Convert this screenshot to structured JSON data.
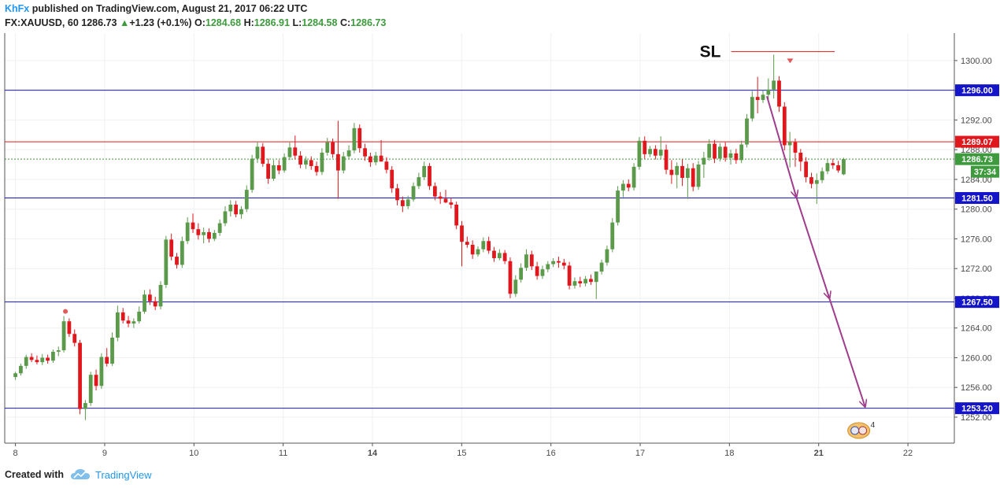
{
  "header": {
    "author": "KhFx",
    "published": "published on TradingView.com, August 21, 2017 06:22 UTC",
    "symbol": "FX:XAUUSD, 60",
    "last": "1286.73",
    "arrow": "▲",
    "change": "+1.23 (+0.1%)",
    "o_label": "O:",
    "o_value": "1284.68",
    "h_label": "H:",
    "h_value": "1286.91",
    "l_label": "L:",
    "l_value": "1284.58",
    "c_label": "C:",
    "c_value": "1286.73"
  },
  "footer": {
    "created_with": "Created with",
    "brand": "TradingView",
    "logo_icon": "tradingview-cloud-icon"
  },
  "colors": {
    "up": "#5b9a4a",
    "down": "#e0181d",
    "support": "#1414c8",
    "resistance": "#e0181d",
    "arrow": "#a03c8c",
    "current": "#3d9a3d",
    "axis": "#555555"
  },
  "chart_data": {
    "type": "candlestick",
    "title": "",
    "xlabel": "",
    "ylabel": "",
    "ylim": [
      1248.5,
      1303.7
    ],
    "y_ticks": [
      1252,
      1256,
      1260,
      1264,
      1268,
      1272,
      1276,
      1280,
      1284,
      1288,
      1292,
      1296,
      1300
    ],
    "x_ticks": [
      {
        "label": "8",
        "day": 0
      },
      {
        "label": "9",
        "day": 1
      },
      {
        "label": "10",
        "day": 2
      },
      {
        "label": "11",
        "day": 3
      },
      {
        "label": "14",
        "day": 4
      },
      {
        "label": "15",
        "day": 5
      },
      {
        "label": "16",
        "day": 6
      },
      {
        "label": "17",
        "day": 7
      },
      {
        "label": "18",
        "day": 8
      },
      {
        "label": "21",
        "day": 9
      },
      {
        "label": "22",
        "day": 10
      }
    ],
    "x_range_days": [
      -0.12,
      10.52
    ],
    "sl_label": "SL",
    "sl_price": 1301.2,
    "sl_day_range": [
      8.02,
      9.18
    ],
    "horizontal_levels": [
      {
        "price": 1296.0,
        "label": "1296.00",
        "kind": "support"
      },
      {
        "price": 1289.07,
        "label": "1289.07",
        "kind": "resistance"
      },
      {
        "price": 1281.5,
        "label": "1281.50",
        "kind": "support"
      },
      {
        "price": 1267.5,
        "label": "1267.50",
        "kind": "support"
      },
      {
        "price": 1253.2,
        "label": "1253.20",
        "kind": "support"
      }
    ],
    "current_price": {
      "price": 1286.73,
      "label": "1286.73",
      "countdown": "37:34"
    },
    "projection_path": [
      {
        "day": 8.42,
        "price": 1295.2
      },
      {
        "day": 8.75,
        "price": 1281.6
      },
      {
        "day": 9.12,
        "price": 1268.0
      },
      {
        "day": 9.52,
        "price": 1253.4
      }
    ],
    "events_badge": "4",
    "candles_ohlc": [
      [
        1257.4,
        1258.1,
        1257.0,
        1257.9
      ],
      [
        1257.9,
        1259.2,
        1257.6,
        1258.9
      ],
      [
        1258.9,
        1260.4,
        1258.5,
        1260.1
      ],
      [
        1260.1,
        1260.6,
        1259.4,
        1259.7
      ],
      [
        1259.7,
        1260.3,
        1259.1,
        1259.4
      ],
      [
        1259.4,
        1260.5,
        1259.0,
        1260.0
      ],
      [
        1260.0,
        1260.4,
        1259.2,
        1259.6
      ],
      [
        1259.6,
        1261.1,
        1259.3,
        1260.8
      ],
      [
        1260.8,
        1261.5,
        1260.2,
        1261.0
      ],
      [
        1261.0,
        1265.6,
        1260.7,
        1264.9
      ],
      [
        1264.9,
        1265.3,
        1262.8,
        1263.2
      ],
      [
        1263.2,
        1263.8,
        1261.5,
        1262.0
      ],
      [
        1262.0,
        1262.4,
        1252.4,
        1253.1
      ],
      [
        1253.1,
        1254.3,
        1251.6,
        1253.9
      ],
      [
        1253.9,
        1258.1,
        1253.5,
        1257.7
      ],
      [
        1257.7,
        1258.4,
        1255.6,
        1256.2
      ],
      [
        1256.2,
        1260.6,
        1255.8,
        1260.1
      ],
      [
        1260.1,
        1261.3,
        1258.8,
        1259.2
      ],
      [
        1259.2,
        1263.4,
        1258.9,
        1262.7
      ],
      [
        1262.7,
        1267.0,
        1262.2,
        1266.1
      ],
      [
        1266.1,
        1266.7,
        1264.6,
        1265.0
      ],
      [
        1265.0,
        1265.6,
        1264.1,
        1264.6
      ],
      [
        1264.6,
        1265.3,
        1264.0,
        1264.9
      ],
      [
        1264.9,
        1266.9,
        1264.6,
        1266.2
      ],
      [
        1266.2,
        1269.1,
        1265.9,
        1268.5
      ],
      [
        1268.5,
        1269.2,
        1267.1,
        1267.6
      ],
      [
        1267.6,
        1268.2,
        1266.4,
        1266.9
      ],
      [
        1266.9,
        1270.3,
        1266.5,
        1269.8
      ],
      [
        1269.8,
        1276.4,
        1269.4,
        1275.9
      ],
      [
        1275.9,
        1276.7,
        1273.1,
        1273.6
      ],
      [
        1273.6,
        1274.1,
        1272.0,
        1272.5
      ],
      [
        1272.5,
        1276.3,
        1272.1,
        1275.7
      ],
      [
        1275.7,
        1278.9,
        1275.3,
        1278.2
      ],
      [
        1278.2,
        1279.4,
        1276.8,
        1277.3
      ],
      [
        1277.3,
        1278.1,
        1275.9,
        1276.5
      ],
      [
        1276.5,
        1277.5,
        1275.4,
        1276.9
      ],
      [
        1276.9,
        1277.4,
        1275.5,
        1276.0
      ],
      [
        1276.0,
        1277.2,
        1275.7,
        1276.8
      ],
      [
        1276.8,
        1278.6,
        1276.4,
        1278.1
      ],
      [
        1278.1,
        1280.4,
        1277.7,
        1279.7
      ],
      [
        1279.7,
        1281.2,
        1279.0,
        1280.6
      ],
      [
        1280.6,
        1281.1,
        1278.9,
        1279.3
      ],
      [
        1279.3,
        1280.4,
        1278.7,
        1280.0
      ],
      [
        1280.0,
        1283.2,
        1279.6,
        1282.6
      ],
      [
        1282.6,
        1287.3,
        1282.2,
        1286.8
      ],
      [
        1286.8,
        1289.1,
        1286.2,
        1288.4
      ],
      [
        1288.4,
        1288.9,
        1285.7,
        1286.1
      ],
      [
        1286.1,
        1286.8,
        1283.4,
        1284.1
      ],
      [
        1284.1,
        1286.6,
        1283.8,
        1285.9
      ],
      [
        1285.9,
        1286.6,
        1284.7,
        1285.2
      ],
      [
        1285.2,
        1287.5,
        1284.9,
        1287.0
      ],
      [
        1287.0,
        1289.0,
        1286.6,
        1288.3
      ],
      [
        1288.3,
        1289.9,
        1286.7,
        1287.2
      ],
      [
        1287.2,
        1287.8,
        1285.5,
        1286.0
      ],
      [
        1286.0,
        1287.1,
        1285.4,
        1286.6
      ],
      [
        1286.6,
        1287.1,
        1285.3,
        1285.8
      ],
      [
        1285.8,
        1286.4,
        1284.5,
        1285.0
      ],
      [
        1285.0,
        1288.2,
        1284.6,
        1287.6
      ],
      [
        1287.6,
        1289.6,
        1287.2,
        1289.0
      ],
      [
        1289.0,
        1289.5,
        1286.9,
        1287.4
      ],
      [
        1287.4,
        1291.9,
        1281.4,
        1285.2
      ],
      [
        1285.2,
        1287.7,
        1284.8,
        1287.1
      ],
      [
        1287.1,
        1288.6,
        1286.7,
        1287.9
      ],
      [
        1287.9,
        1291.6,
        1287.5,
        1290.9
      ],
      [
        1290.9,
        1291.4,
        1287.6,
        1288.2
      ],
      [
        1288.2,
        1288.8,
        1286.5,
        1287.1
      ],
      [
        1287.1,
        1287.6,
        1285.7,
        1286.3
      ],
      [
        1286.3,
        1287.7,
        1285.9,
        1287.2
      ],
      [
        1287.2,
        1289.3,
        1286.9,
        1286.4
      ],
      [
        1286.4,
        1287.0,
        1284.8,
        1285.3
      ],
      [
        1285.3,
        1285.8,
        1282.2,
        1282.8
      ],
      [
        1282.8,
        1283.4,
        1280.5,
        1281.2
      ],
      [
        1281.2,
        1281.7,
        1279.6,
        1280.4
      ],
      [
        1280.4,
        1281.8,
        1280.0,
        1281.3
      ],
      [
        1281.3,
        1283.6,
        1281.0,
        1283.1
      ],
      [
        1283.1,
        1284.9,
        1282.7,
        1284.3
      ],
      [
        1284.3,
        1286.4,
        1283.9,
        1285.8
      ],
      [
        1285.8,
        1286.2,
        1282.6,
        1283.1
      ],
      [
        1283.1,
        1283.6,
        1281.2,
        1281.7
      ],
      [
        1281.7,
        1282.3,
        1280.7,
        1281.4
      ],
      [
        1281.4,
        1282.6,
        1280.8,
        1280.9
      ],
      [
        1280.9,
        1281.5,
        1280.1,
        1280.6
      ],
      [
        1280.6,
        1281.0,
        1277.3,
        1277.8
      ],
      [
        1277.8,
        1278.4,
        1272.3,
        1275.6
      ],
      [
        1275.6,
        1276.3,
        1274.8,
        1275.2
      ],
      [
        1275.2,
        1275.8,
        1273.3,
        1273.9
      ],
      [
        1273.9,
        1275.0,
        1273.6,
        1274.6
      ],
      [
        1274.6,
        1276.2,
        1274.2,
        1275.7
      ],
      [
        1275.7,
        1276.3,
        1274.0,
        1274.4
      ],
      [
        1274.4,
        1274.9,
        1272.9,
        1273.4
      ],
      [
        1273.4,
        1274.6,
        1273.1,
        1274.1
      ],
      [
        1274.1,
        1274.5,
        1272.6,
        1273.0
      ],
      [
        1273.0,
        1273.5,
        1268.0,
        1268.6
      ],
      [
        1268.6,
        1271.1,
        1268.2,
        1270.5
      ],
      [
        1270.5,
        1272.7,
        1270.1,
        1272.1
      ],
      [
        1272.1,
        1274.6,
        1271.7,
        1273.9
      ],
      [
        1273.9,
        1274.4,
        1271.8,
        1272.3
      ],
      [
        1272.3,
        1272.9,
        1270.5,
        1271.0
      ],
      [
        1271.0,
        1272.4,
        1270.6,
        1271.9
      ],
      [
        1271.9,
        1273.0,
        1271.5,
        1272.6
      ],
      [
        1272.6,
        1273.4,
        1272.2,
        1273.0
      ],
      [
        1273.0,
        1273.6,
        1272.1,
        1272.8
      ],
      [
        1272.8,
        1273.3,
        1271.9,
        1272.4
      ],
      [
        1272.4,
        1272.9,
        1269.2,
        1269.7
      ],
      [
        1269.7,
        1270.8,
        1269.3,
        1270.3
      ],
      [
        1270.3,
        1270.9,
        1269.5,
        1270.0
      ],
      [
        1270.0,
        1271.0,
        1269.6,
        1270.6
      ],
      [
        1270.6,
        1271.2,
        1269.8,
        1270.2
      ],
      [
        1270.2,
        1270.7,
        1267.9,
        1271.6
      ],
      [
        1271.6,
        1273.2,
        1271.2,
        1272.8
      ],
      [
        1272.8,
        1275.1,
        1272.4,
        1274.6
      ],
      [
        1274.6,
        1278.8,
        1274.2,
        1278.2
      ],
      [
        1278.2,
        1283.1,
        1277.8,
        1282.5
      ],
      [
        1282.5,
        1283.9,
        1281.6,
        1283.4
      ],
      [
        1283.4,
        1284.0,
        1282.4,
        1282.9
      ],
      [
        1282.9,
        1286.2,
        1282.5,
        1285.7
      ],
      [
        1285.7,
        1289.7,
        1285.3,
        1289.2
      ],
      [
        1289.2,
        1289.8,
        1286.8,
        1287.4
      ],
      [
        1287.4,
        1288.5,
        1287.0,
        1288.1
      ],
      [
        1288.1,
        1288.6,
        1286.7,
        1287.2
      ],
      [
        1287.2,
        1289.8,
        1286.8,
        1288.0
      ],
      [
        1288.0,
        1288.7,
        1284.7,
        1285.3
      ],
      [
        1285.3,
        1286.6,
        1283.4,
        1284.6
      ],
      [
        1284.6,
        1286.3,
        1282.8,
        1285.8
      ],
      [
        1285.8,
        1286.7,
        1283.1,
        1284.2
      ],
      [
        1284.2,
        1286.1,
        1281.4,
        1285.5
      ],
      [
        1285.5,
        1286.2,
        1282.4,
        1283.0
      ],
      [
        1283.0,
        1286.5,
        1282.6,
        1286.0
      ],
      [
        1286.0,
        1287.7,
        1284.2,
        1286.9
      ],
      [
        1286.9,
        1289.4,
        1286.5,
        1288.8
      ],
      [
        1288.8,
        1289.3,
        1286.2,
        1286.8
      ],
      [
        1286.8,
        1288.9,
        1286.4,
        1288.4
      ],
      [
        1288.4,
        1289.0,
        1286.4,
        1286.9
      ],
      [
        1286.9,
        1288.0,
        1286.0,
        1287.5
      ],
      [
        1287.5,
        1288.1,
        1286.1,
        1286.6
      ],
      [
        1286.6,
        1289.2,
        1286.2,
        1288.7
      ],
      [
        1288.7,
        1292.8,
        1288.3,
        1292.2
      ],
      [
        1292.2,
        1295.9,
        1291.8,
        1295.1
      ],
      [
        1295.1,
        1297.8,
        1292.9,
        1294.7
      ],
      [
        1294.7,
        1296.0,
        1294.3,
        1295.4
      ],
      [
        1295.4,
        1297.6,
        1294.6,
        1296.1
      ],
      [
        1296.1,
        1300.8,
        1294.9,
        1297.3
      ],
      [
        1297.3,
        1297.9,
        1293.1,
        1293.8
      ],
      [
        1293.8,
        1294.4,
        1287.9,
        1288.6
      ],
      [
        1288.6,
        1290.4,
        1285.6,
        1289.0
      ],
      [
        1289.0,
        1289.5,
        1285.7,
        1287.6
      ],
      [
        1287.6,
        1288.1,
        1285.1,
        1286.4
      ],
      [
        1286.4,
        1287.0,
        1283.6,
        1284.3
      ],
      [
        1284.3,
        1284.9,
        1282.8,
        1283.4
      ],
      [
        1283.4,
        1284.8,
        1280.7,
        1283.9
      ],
      [
        1283.9,
        1285.6,
        1283.5,
        1285.1
      ],
      [
        1285.1,
        1286.7,
        1284.7,
        1286.2
      ],
      [
        1286.2,
        1286.8,
        1285.4,
        1285.9
      ],
      [
        1285.9,
        1286.5,
        1284.9,
        1285.2
      ],
      [
        1284.68,
        1286.91,
        1284.58,
        1286.73
      ]
    ]
  }
}
